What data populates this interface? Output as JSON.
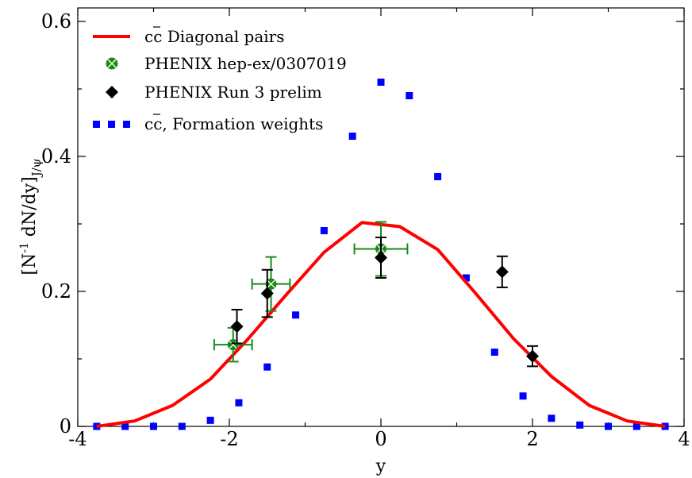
{
  "chart_data": {
    "type": "line",
    "title": "",
    "xlabel": "y",
    "ylabel": "[N⁻¹ dN/dy]J/ψ",
    "ylabel_parts": {
      "open": "[N",
      "sup": "-1",
      "mid": " dN/dy]",
      "sub": "J/ψ"
    },
    "xlim": [
      -4,
      4
    ],
    "ylim": [
      0,
      0.62
    ],
    "x_ticks": [
      -4,
      -2,
      0,
      2,
      4
    ],
    "x_tick_labels": [
      "-4",
      "-2",
      "0",
      "2",
      "4"
    ],
    "y_ticks": [
      0,
      0.2,
      0.4,
      0.6
    ],
    "y_tick_labels": [
      "0",
      "0.2",
      "0.4",
      "0.6"
    ],
    "grid": false,
    "legend_position": "top-left",
    "series": [
      {
        "name": "cc̄ Diagonal pairs",
        "label_main": "cc",
        "label_rest": " Diagonal pairs",
        "kind": "line",
        "color": "#ff0000",
        "x": [
          -3.75,
          -3.25,
          -2.75,
          -2.25,
          -1.75,
          -1.25,
          -0.75,
          -0.25,
          0.25,
          0.75,
          1.25,
          1.75,
          2.25,
          2.75,
          3.25,
          3.75
        ],
        "y": [
          0.0,
          0.008,
          0.031,
          0.07,
          0.13,
          0.195,
          0.258,
          0.302,
          0.296,
          0.262,
          0.197,
          0.13,
          0.074,
          0.031,
          0.008,
          0.0
        ]
      },
      {
        "name": "PHENIX hep-ex/0307019",
        "kind": "errorbar",
        "marker": "circle-cross",
        "color": "#1a8a1a",
        "points": [
          {
            "x": -1.95,
            "y": 0.121,
            "xerr": 0.25,
            "yerr_low": 0.025,
            "yerr_high": 0.025
          },
          {
            "x": -1.45,
            "y": 0.211,
            "xerr": 0.25,
            "yerr_low": 0.04,
            "yerr_high": 0.04
          },
          {
            "x": 0.0,
            "y": 0.263,
            "xerr": 0.35,
            "yerr_low": 0.04,
            "yerr_high": 0.04
          }
        ]
      },
      {
        "name": "PHENIX Run 3 prelim",
        "kind": "errorbar",
        "marker": "diamond",
        "color": "#000000",
        "points": [
          {
            "x": -1.9,
            "y": 0.148,
            "yerr_low": 0.025,
            "yerr_high": 0.025
          },
          {
            "x": -1.5,
            "y": 0.197,
            "yerr_low": 0.035,
            "yerr_high": 0.035
          },
          {
            "x": 0.0,
            "y": 0.25,
            "yerr_low": 0.03,
            "yerr_high": 0.03
          },
          {
            "x": 1.6,
            "y": 0.229,
            "yerr_low": 0.023,
            "yerr_high": 0.023
          },
          {
            "x": 2.0,
            "y": 0.104,
            "yerr_low": 0.015,
            "yerr_high": 0.015
          }
        ]
      },
      {
        "name": "cc̄, Formation weights",
        "label_main": "cc",
        "label_rest": ", Formation weights",
        "kind": "dotted",
        "color": "#0000ff",
        "x": [
          -3.75,
          -3.375,
          -3.0,
          -2.625,
          -2.25,
          -1.875,
          -1.5,
          -1.125,
          -0.75,
          -0.375,
          0.0,
          0.375,
          0.75,
          1.125,
          1.5,
          1.875,
          2.25,
          2.625,
          3.0,
          3.375,
          3.75
        ],
        "y": [
          0.0,
          0.0,
          0.0,
          0.0,
          0.009,
          0.035,
          0.088,
          0.165,
          0.29,
          0.43,
          0.51,
          0.49,
          0.37,
          0.22,
          0.11,
          0.045,
          0.012,
          0.002,
          0.0,
          0.0,
          0.0
        ]
      }
    ]
  }
}
